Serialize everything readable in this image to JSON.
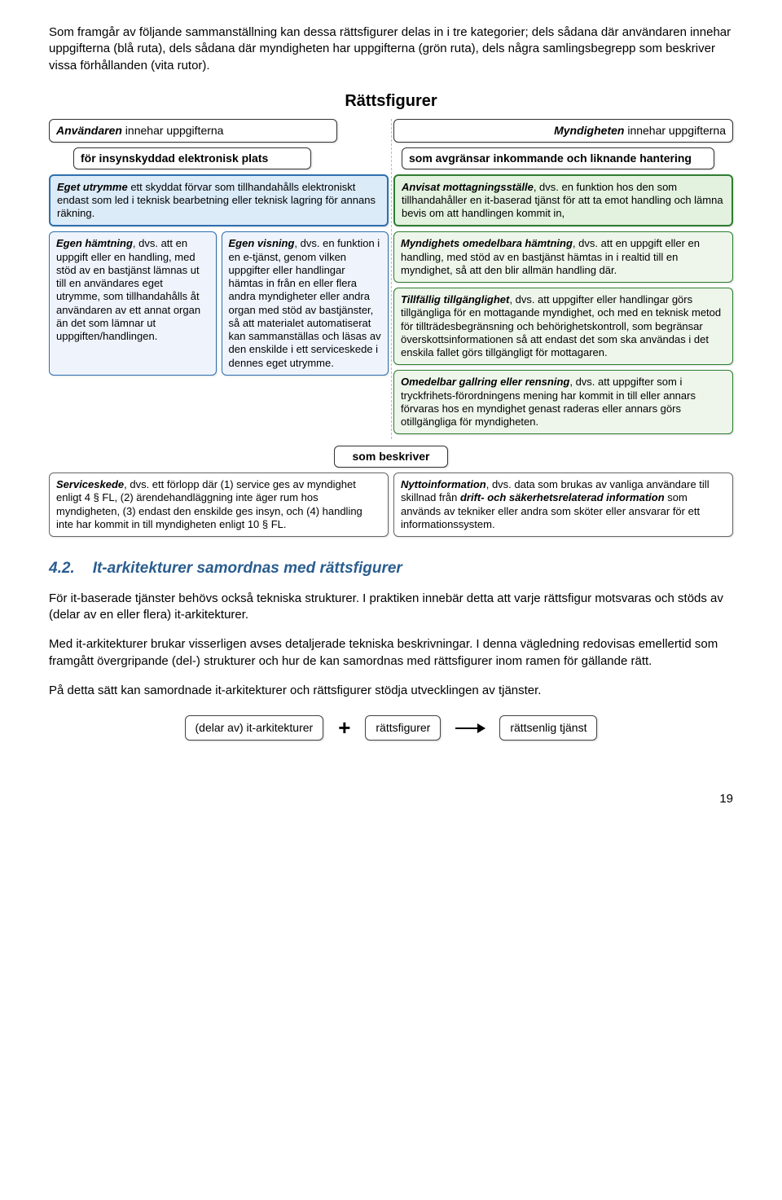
{
  "intro": "Som framgår av följande sammanställning kan dessa rättsfigurer delas in i tre kategorier; dels sådana där användaren innehar uppgifterna (blå ruta), dels sådana där myndigheten har uppgifterna (grön ruta), dels några samlingsbegrepp som beskriver vissa förhållanden (vita rutor).",
  "diagram": {
    "title": "Rättsfigurer",
    "left": {
      "header_bold": "Användaren",
      "header_rest": " innehar uppgifterna",
      "sub_bold": "för insynskyddad elektronisk plats",
      "main_card_bold": "Eget utrymme",
      "main_card_rest": " ett skyddat förvar som tillhandahålls elektroniskt endast som led i teknisk bearbetning eller teknisk lagring för annans räkning.",
      "sub1_bold": "Egen hämtning",
      "sub1_rest": ", dvs. att en uppgift eller en handling, med stöd av en bastjänst lämnas ut till en användares eget utrymme, som tillhandahålls åt användaren av ett annat organ än det som lämnar ut uppgiften/handlingen.",
      "sub2_bold": "Egen visning",
      "sub2_rest": ", dvs. en funktion i en e-tjänst, genom vilken uppgifter eller handlingar hämtas in från en eller flera andra myndigheter eller andra organ med stöd av bastjänster, så att materialet automatiserat kan sammanställas och läsas av den enskilde i ett serviceskede i dennes eget utrymme."
    },
    "right": {
      "header_bold": "Myndigheten",
      "header_rest": " innehar uppgifterna",
      "sub_bold": "som avgränsar inkommande och liknande hantering",
      "main_card_bold": "Anvisat mottagningsställe",
      "main_card_rest": ", dvs. en funktion hos den som tillhandahåller en it-baserad tjänst för att ta emot handling och lämna bevis om att handlingen kommit in,",
      "g2_bold": "Myndighets omedelbara hämtning",
      "g2_rest": ", dvs. att en uppgift eller en handling, med stöd av en bastjänst hämtas in i realtid till en myndighet, så att den blir allmän handling där.",
      "g3_bold": "Tillfällig tillgänglighet",
      "g3_rest": ", dvs. att uppgifter eller handlingar görs tillgängliga för en mottagande myndighet, och med en teknisk metod för tillträdesbegränsning och behörighetskontroll, som begränsar överskottsinformationen så att endast det som ska användas i det enskila fallet görs tillgängligt för mottagaren.",
      "g4_bold": "Omedelbar gallring eller rensning",
      "g4_rest": ", dvs. att uppgifter som i tryckfrihets-förordningens mening har kommit in till eller annars förvaras hos en myndighet genast raderas eller annars görs otillgängliga för myndigheten."
    },
    "som_beskriver": "som beskriver",
    "bottom_left_bold": "Serviceskede",
    "bottom_left_rest": ", dvs. ett förlopp där (1) service ges av myndighet enligt 4 § FL, (2) ärendehandläggning inte äger rum hos myndigheten, (3) endast den enskilde ges insyn, och (4) handling inte har kommit in till myndigheten enligt 10 § FL.",
    "bottom_right_bold": "Nyttoinformation",
    "bottom_right_mid1": ", dvs. data som brukas av vanliga användare till skillnad från ",
    "bottom_right_ibold": "drift- och säkerhetsrelaterad information",
    "bottom_right_mid2": " som används av tekniker eller andra som sköter eller ansvarar för ett informationssystem."
  },
  "section": {
    "num": "4.2.",
    "title": "It-arkitekturer samordnas med rättsfigurer",
    "p1": "För it-baserade tjänster behövs också tekniska strukturer. I praktiken innebär detta att varje rättsfigur motsvaras och stöds av (delar av en eller flera) it-arkitekturer.",
    "p2": "Med it-arkitekturer brukar visserligen avses detaljerade tekniska beskrivningar. I denna vägledning redovisas emellertid som framgått övergripande (del-) strukturer och hur de kan samordnas med rättsfigurer inom ramen för gällande rätt.",
    "p3": "På detta sätt kan samordnade it-arkitekturer och rättsfigurer stödja utvecklingen av tjänster."
  },
  "equation": {
    "box1": "(delar av) it-arkitekturer",
    "plus": "+",
    "box2": "rättsfigurer",
    "box3": "rättsenlig tjänst"
  },
  "pagenum": "19"
}
